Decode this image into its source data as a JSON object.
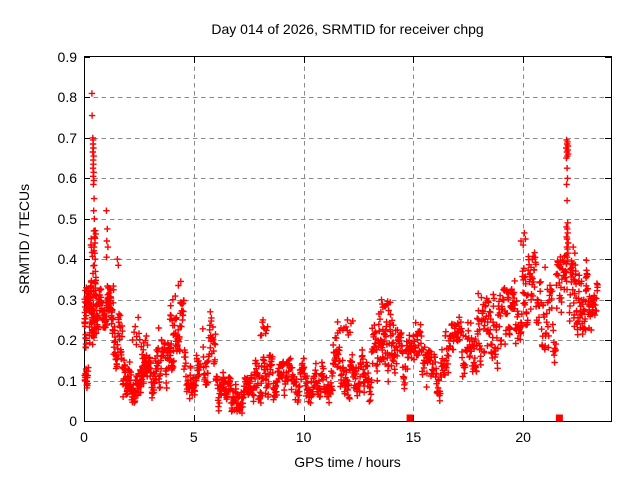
{
  "chart_data": {
    "type": "scatter",
    "title": "Day 014 of 2026, SRMTID for receiver chpg",
    "xlabel": "GPS time / hours",
    "ylabel": "SRMTID / TECUs",
    "xlim": [
      0,
      24
    ],
    "ylim": [
      0,
      0.9
    ],
    "x_ticks": {
      "values": [
        0,
        5,
        10,
        15,
        20
      ],
      "labels": [
        "0",
        "5",
        "10",
        "15",
        "20"
      ]
    },
    "y_ticks": {
      "values": [
        0,
        0.1,
        0.2,
        0.3,
        0.4,
        0.5,
        0.6,
        0.7,
        0.8,
        0.9
      ],
      "labels": [
        "0",
        "0.1",
        "0.2",
        "0.3",
        "0.4",
        "0.5",
        "0.6",
        "0.7",
        "0.8",
        "0.9"
      ]
    },
    "grid": {
      "visible": true,
      "style": "dashed",
      "at_major_ticks": true
    },
    "legend": "none",
    "colors": {
      "points": "#ff0000",
      "grid": "#8a8a8a",
      "axis": "#000000",
      "text": "#000000",
      "background": "#ffffff"
    },
    "series": [
      {
        "name": "srmtid-scatter",
        "marker": "plus",
        "color": "#ff0000",
        "density_bands": [
          [
            0.02,
            0.25,
            0.15,
            0.33,
            50
          ],
          [
            0.02,
            0.2,
            0.08,
            0.14,
            18
          ],
          [
            0.25,
            0.65,
            0.19,
            0.35,
            70
          ],
          [
            0.3,
            0.55,
            0.35,
            0.48,
            12
          ],
          [
            0.65,
            1.0,
            0.22,
            0.33,
            30
          ],
          [
            1.0,
            1.35,
            0.22,
            0.34,
            45
          ],
          [
            1.35,
            1.75,
            0.13,
            0.27,
            40
          ],
          [
            1.75,
            2.1,
            0.05,
            0.15,
            40
          ],
          [
            2.1,
            2.65,
            0.04,
            0.13,
            55
          ],
          [
            2.2,
            2.9,
            0.14,
            0.27,
            15
          ],
          [
            2.65,
            3.3,
            0.05,
            0.16,
            55
          ],
          [
            3.3,
            4.1,
            0.06,
            0.2,
            60
          ],
          [
            3.9,
            4.2,
            0.2,
            0.27,
            10
          ],
          [
            4.15,
            4.55,
            0.16,
            0.345,
            40
          ],
          [
            4.55,
            5.3,
            0.06,
            0.18,
            55
          ],
          [
            5.4,
            6.0,
            0.08,
            0.27,
            40
          ],
          [
            6.0,
            6.7,
            0.03,
            0.12,
            55
          ],
          [
            6.7,
            7.6,
            0.02,
            0.11,
            65
          ],
          [
            7.6,
            8.6,
            0.04,
            0.16,
            70
          ],
          [
            8.0,
            8.4,
            0.16,
            0.25,
            8
          ],
          [
            8.6,
            10.6,
            0.05,
            0.15,
            130
          ],
          [
            10.6,
            12.1,
            0.05,
            0.18,
            95
          ],
          [
            11.3,
            12.3,
            0.18,
            0.25,
            14
          ],
          [
            12.1,
            13.1,
            0.05,
            0.17,
            70
          ],
          [
            13.1,
            14.2,
            0.08,
            0.24,
            80
          ],
          [
            13.4,
            14.1,
            0.23,
            0.3,
            14
          ],
          [
            14.2,
            15.1,
            0.08,
            0.22,
            60
          ],
          [
            15.1,
            15.6,
            0.12,
            0.28,
            30
          ],
          [
            15.6,
            16.3,
            0.05,
            0.18,
            45
          ],
          [
            16.3,
            17.6,
            0.1,
            0.25,
            85
          ],
          [
            17.6,
            18.6,
            0.11,
            0.3,
            70
          ],
          [
            18.6,
            19.6,
            0.13,
            0.33,
            70
          ],
          [
            19.6,
            20.6,
            0.18,
            0.42,
            75
          ],
          [
            20.6,
            21.5,
            0.15,
            0.36,
            55
          ],
          [
            21.5,
            22.0,
            0.19,
            0.41,
            40
          ],
          [
            22.1,
            22.9,
            0.22,
            0.4,
            70
          ],
          [
            22.85,
            23.4,
            0.26,
            0.4,
            40
          ]
        ],
        "highlight_points": [
          [
            0.36,
            0.81
          ],
          [
            0.37,
            0.755
          ],
          [
            0.4,
            0.7
          ],
          [
            0.42,
            0.695
          ],
          [
            0.41,
            0.685
          ],
          [
            0.43,
            0.675
          ],
          [
            0.4,
            0.665
          ],
          [
            0.44,
            0.655
          ],
          [
            0.42,
            0.645
          ],
          [
            0.43,
            0.635
          ],
          [
            0.41,
            0.625
          ],
          [
            0.44,
            0.615
          ],
          [
            0.42,
            0.605
          ],
          [
            0.45,
            0.595
          ],
          [
            0.43,
            0.585
          ],
          [
            0.46,
            0.55
          ],
          [
            0.44,
            0.52
          ],
          [
            0.47,
            0.5
          ],
          [
            0.45,
            0.47
          ],
          [
            0.48,
            0.455
          ],
          [
            0.5,
            0.44
          ],
          [
            0.46,
            0.43
          ],
          [
            0.49,
            0.415
          ],
          [
            0.51,
            0.4
          ],
          [
            0.47,
            0.385
          ],
          [
            0.52,
            0.37
          ],
          [
            0.54,
            0.355
          ],
          [
            1.02,
            0.52
          ],
          [
            1.06,
            0.475
          ],
          [
            1.04,
            0.445
          ],
          [
            1.09,
            0.43
          ],
          [
            1.03,
            0.405
          ],
          [
            1.52,
            0.4
          ],
          [
            1.56,
            0.385
          ],
          [
            3.4,
            0.23
          ],
          [
            3.95,
            0.285
          ],
          [
            4.05,
            0.3
          ],
          [
            4.3,
            0.335
          ],
          [
            5.75,
            0.27
          ],
          [
            5.8,
            0.255
          ],
          [
            8.15,
            0.25
          ],
          [
            11.55,
            0.245
          ],
          [
            12.0,
            0.25
          ],
          [
            13.55,
            0.3
          ],
          [
            13.85,
            0.29
          ],
          [
            17.95,
            0.315
          ],
          [
            18.1,
            0.305
          ],
          [
            19.9,
            0.445
          ],
          [
            20.05,
            0.465
          ],
          [
            20.1,
            0.45
          ],
          [
            20.0,
            0.435
          ],
          [
            21.0,
            0.38
          ],
          [
            21.98,
            0.695
          ],
          [
            22.02,
            0.69
          ],
          [
            22.0,
            0.685
          ],
          [
            22.04,
            0.68
          ],
          [
            21.96,
            0.675
          ],
          [
            22.03,
            0.67
          ],
          [
            21.99,
            0.665
          ],
          [
            22.05,
            0.66
          ],
          [
            22.01,
            0.655
          ],
          [
            21.97,
            0.65
          ],
          [
            22.0,
            0.625
          ],
          [
            22.02,
            0.6
          ],
          [
            21.98,
            0.585
          ],
          [
            22.0,
            0.545
          ],
          [
            22.03,
            0.49
          ],
          [
            21.97,
            0.48
          ],
          [
            22.01,
            0.475
          ],
          [
            22.03,
            0.465
          ],
          [
            21.98,
            0.455
          ],
          [
            22.0,
            0.45
          ],
          [
            22.05,
            0.44
          ],
          [
            21.99,
            0.43
          ],
          [
            22.02,
            0.425
          ],
          [
            22.04,
            0.415
          ],
          [
            21.96,
            0.41
          ],
          [
            22.0,
            0.405
          ],
          [
            22.03,
            0.395
          ],
          [
            21.98,
            0.39
          ],
          [
            22.28,
            0.43
          ],
          [
            22.35,
            0.415
          ],
          [
            23.0,
            0.23
          ],
          [
            23.1,
            0.225
          ]
        ],
        "notable_values": {
          "max_y": 0.81,
          "max_y_at_x": 0.36,
          "right_spike_top": 0.695,
          "right_spike_x": 22.0
        }
      },
      {
        "name": "zero-square-markers",
        "marker": "square",
        "color": "#ff0000",
        "points": [
          [
            14.85,
            0
          ],
          [
            21.65,
            0
          ]
        ]
      }
    ]
  }
}
